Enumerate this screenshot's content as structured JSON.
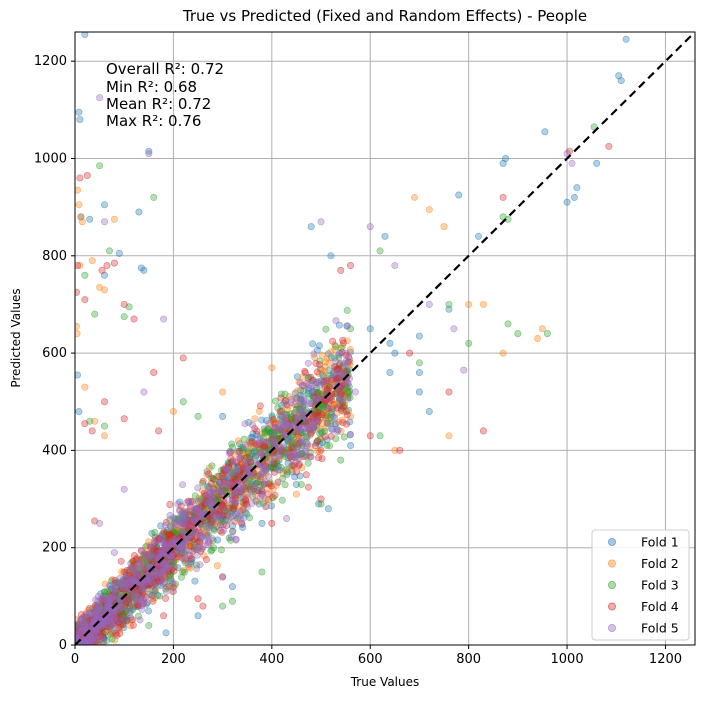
{
  "chart_data": {
    "type": "scatter",
    "title": "True vs Predicted (Fixed and Random Effects) - People",
    "xlabel": "True Values",
    "ylabel": "Predicted Values",
    "xlim": [
      0,
      1260
    ],
    "ylim": [
      0,
      1260
    ],
    "xticks": [
      0,
      200,
      400,
      600,
      800,
      1000,
      1200
    ],
    "yticks": [
      0,
      200,
      400,
      600,
      800,
      1000,
      1200
    ],
    "grid": true,
    "legend_position": "lower-right",
    "reference_line": {
      "style": "dashed",
      "color": "#000000",
      "from": [
        0,
        0
      ],
      "to": [
        1260,
        1260
      ]
    },
    "annotations": [
      "Overall R²: 0.72",
      "Min R²: 0.68",
      "Mean R²: 0.72",
      "Max R²: 0.76"
    ],
    "series": [
      {
        "name": "Fold 1",
        "color": "#1f77b4",
        "points": [
          [
            1120,
            1245
          ],
          [
            1105,
            1170
          ],
          [
            1110,
            1160
          ],
          [
            1020,
            940
          ],
          [
            1015,
            920
          ],
          [
            1000,
            910
          ],
          [
            1060,
            990
          ],
          [
            955,
            1055
          ],
          [
            875,
            1000
          ],
          [
            870,
            990
          ],
          [
            780,
            925
          ],
          [
            820,
            840
          ],
          [
            760,
            690
          ],
          [
            700,
            635
          ],
          [
            650,
            600
          ],
          [
            560,
            410
          ],
          [
            515,
            280
          ],
          [
            495,
            290
          ],
          [
            450,
            330
          ],
          [
            430,
            360
          ],
          [
            380,
            250
          ],
          [
            320,
            120
          ],
          [
            250,
            60
          ],
          [
            185,
            25
          ],
          [
            150,
            1015
          ],
          [
            130,
            890
          ],
          [
            135,
            775
          ],
          [
            140,
            770
          ],
          [
            20,
            1255
          ],
          [
            8,
            1095
          ],
          [
            10,
            1080
          ],
          [
            12,
            880
          ],
          [
            30,
            875
          ],
          [
            60,
            905
          ],
          [
            5,
            555
          ],
          [
            8,
            480
          ],
          [
            300,
            470
          ],
          [
            600,
            650
          ],
          [
            640,
            560
          ],
          [
            700,
            520
          ],
          [
            720,
            480
          ],
          [
            520,
            800
          ],
          [
            630,
            840
          ],
          [
            480,
            860
          ],
          [
            90,
            805
          ],
          [
            60,
            760
          ],
          [
            700,
            560
          ],
          [
            640,
            620
          ]
        ]
      },
      {
        "name": "Fold 2",
        "color": "#ff7f0e",
        "points": [
          [
            5,
            935
          ],
          [
            8,
            905
          ],
          [
            12,
            880
          ],
          [
            15,
            870
          ],
          [
            50,
            735
          ],
          [
            60,
            730
          ],
          [
            80,
            875
          ],
          [
            3,
            655
          ],
          [
            4,
            640
          ],
          [
            10,
            780
          ],
          [
            35,
            790
          ],
          [
            950,
            650
          ],
          [
            940,
            630
          ],
          [
            830,
            700
          ],
          [
            800,
            700
          ],
          [
            720,
            895
          ],
          [
            690,
            920
          ],
          [
            750,
            860
          ],
          [
            760,
            430
          ],
          [
            650,
            400
          ],
          [
            560,
            470
          ],
          [
            400,
            570
          ],
          [
            450,
            310
          ],
          [
            20,
            530
          ],
          [
            40,
            460
          ],
          [
            60,
            430
          ],
          [
            120,
            120
          ],
          [
            200,
            480
          ],
          [
            300,
            520
          ],
          [
            870,
            600
          ]
        ]
      },
      {
        "name": "Fold 3",
        "color": "#2ca02c",
        "points": [
          [
            1055,
            1065
          ],
          [
            880,
            875
          ],
          [
            870,
            880
          ],
          [
            960,
            640
          ],
          [
            900,
            640
          ],
          [
            880,
            660
          ],
          [
            160,
            920
          ],
          [
            100,
            675
          ],
          [
            110,
            695
          ],
          [
            50,
            985
          ],
          [
            20,
            760
          ],
          [
            40,
            680
          ],
          [
            70,
            810
          ],
          [
            60,
            450
          ],
          [
            30,
            460
          ],
          [
            620,
            810
          ],
          [
            560,
            650
          ],
          [
            760,
            700
          ],
          [
            800,
            620
          ],
          [
            540,
            380
          ],
          [
            500,
            290
          ],
          [
            460,
            330
          ],
          [
            380,
            150
          ],
          [
            320,
            90
          ],
          [
            300,
            80
          ],
          [
            150,
            40
          ],
          [
            220,
            500
          ],
          [
            250,
            470
          ],
          [
            620,
            430
          ],
          [
            700,
            580
          ]
        ]
      },
      {
        "name": "Fold 4",
        "color": "#d62728",
        "points": [
          [
            1085,
            1025
          ],
          [
            1005,
            1015
          ],
          [
            870,
            920
          ],
          [
            25,
            965
          ],
          [
            10,
            960
          ],
          [
            3,
            725
          ],
          [
            5,
            780
          ],
          [
            20,
            710
          ],
          [
            80,
            785
          ],
          [
            65,
            780
          ],
          [
            55,
            770
          ],
          [
            100,
            700
          ],
          [
            120,
            670
          ],
          [
            40,
            255
          ],
          [
            20,
            455
          ],
          [
            35,
            440
          ],
          [
            60,
            500
          ],
          [
            100,
            465
          ],
          [
            170,
            440
          ],
          [
            260,
            80
          ],
          [
            180,
            60
          ],
          [
            540,
            770
          ],
          [
            560,
            780
          ],
          [
            660,
            400
          ],
          [
            600,
            430
          ],
          [
            680,
            600
          ],
          [
            760,
            520
          ],
          [
            830,
            440
          ],
          [
            470,
            350
          ],
          [
            500,
            300
          ],
          [
            380,
            310
          ],
          [
            400,
            250
          ],
          [
            300,
            140
          ],
          [
            250,
            95
          ],
          [
            160,
            560
          ],
          [
            220,
            590
          ]
        ]
      },
      {
        "name": "Fold 5",
        "color": "#9467bd",
        "points": [
          [
            1000,
            1010
          ],
          [
            1010,
            990
          ],
          [
            60,
            870
          ],
          [
            50,
            1125
          ],
          [
            150,
            1010
          ],
          [
            180,
            670
          ],
          [
            500,
            870
          ],
          [
            570,
            520
          ],
          [
            720,
            700
          ],
          [
            770,
            650
          ],
          [
            790,
            565
          ],
          [
            430,
            260
          ],
          [
            300,
            140
          ],
          [
            200,
            110
          ],
          [
            80,
            190
          ],
          [
            50,
            250
          ],
          [
            100,
            320
          ],
          [
            140,
            520
          ],
          [
            600,
            860
          ],
          [
            650,
            780
          ],
          [
            550,
            600
          ],
          [
            490,
            540
          ],
          [
            420,
            470
          ],
          [
            350,
            360
          ],
          [
            280,
            290
          ],
          [
            240,
            240
          ],
          [
            200,
            190
          ],
          [
            160,
            150
          ],
          [
            120,
            110
          ],
          [
            80,
            70
          ],
          [
            40,
            30
          ],
          [
            310,
            330
          ],
          [
            370,
            390
          ],
          [
            430,
            430
          ],
          [
            460,
            500
          ]
        ]
      }
    ],
    "dense_cloud": {
      "description_in_data_units": "high-density band of points along the diagonal",
      "x_range": [
        0,
        560
      ],
      "center_slope": 1.0,
      "spread_y": 160
    }
  }
}
